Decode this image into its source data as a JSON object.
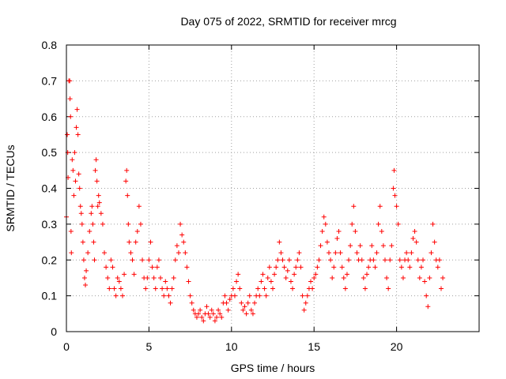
{
  "chart_data": {
    "type": "scatter",
    "title": "Day 075 of 2022, SRMTID for receiver mrcg",
    "xlabel": "GPS time / hours",
    "ylabel": "SRMTID / TECUs",
    "xlim": [
      0,
      25
    ],
    "ylim": [
      0,
      0.8
    ],
    "x_ticks": [
      0,
      5,
      10,
      15,
      20
    ],
    "y_ticks": [
      0,
      0.1,
      0.2,
      0.3,
      0.4,
      0.5,
      0.6,
      0.7,
      0.8
    ],
    "x_tick_labels": [
      "0",
      "5",
      "10",
      "15",
      "20"
    ],
    "y_tick_labels": [
      "0",
      "0.1",
      "0.2",
      "0.3",
      "0.4",
      "0.5",
      "0.6",
      "0.7",
      "0.8"
    ],
    "grid": true,
    "marker": "+",
    "color": "#ff0000",
    "series": [
      {
        "name": "SRMTID",
        "points": [
          [
            0.0,
            0.32
          ],
          [
            0.05,
            0.55
          ],
          [
            0.08,
            0.5
          ],
          [
            0.1,
            0.43
          ],
          [
            0.15,
            0.7
          ],
          [
            0.2,
            0.7
          ],
          [
            0.22,
            0.65
          ],
          [
            0.25,
            0.6
          ],
          [
            0.28,
            0.28
          ],
          [
            0.3,
            0.22
          ],
          [
            0.35,
            0.48
          ],
          [
            0.4,
            0.45
          ],
          [
            0.45,
            0.38
          ],
          [
            0.5,
            0.5
          ],
          [
            0.55,
            0.42
          ],
          [
            0.6,
            0.57
          ],
          [
            0.65,
            0.62
          ],
          [
            0.7,
            0.55
          ],
          [
            0.75,
            0.44
          ],
          [
            0.8,
            0.4
          ],
          [
            0.85,
            0.35
          ],
          [
            0.9,
            0.33
          ],
          [
            0.95,
            0.3
          ],
          [
            1.0,
            0.25
          ],
          [
            1.05,
            0.2
          ],
          [
            1.1,
            0.15
          ],
          [
            1.15,
            0.13
          ],
          [
            1.2,
            0.17
          ],
          [
            1.3,
            0.22
          ],
          [
            1.4,
            0.28
          ],
          [
            1.5,
            0.33
          ],
          [
            1.55,
            0.35
          ],
          [
            1.6,
            0.3
          ],
          [
            1.65,
            0.25
          ],
          [
            1.7,
            0.2
          ],
          [
            1.75,
            0.45
          ],
          [
            1.8,
            0.48
          ],
          [
            1.85,
            0.42
          ],
          [
            1.9,
            0.35
          ],
          [
            1.95,
            0.38
          ],
          [
            2.0,
            0.36
          ],
          [
            2.1,
            0.33
          ],
          [
            2.2,
            0.3
          ],
          [
            2.3,
            0.22
          ],
          [
            2.4,
            0.18
          ],
          [
            2.5,
            0.15
          ],
          [
            2.6,
            0.12
          ],
          [
            2.7,
            0.2
          ],
          [
            2.8,
            0.18
          ],
          [
            2.9,
            0.12
          ],
          [
            3.0,
            0.1
          ],
          [
            3.1,
            0.15
          ],
          [
            3.2,
            0.14
          ],
          [
            3.3,
            0.12
          ],
          [
            3.4,
            0.1
          ],
          [
            3.5,
            0.16
          ],
          [
            3.6,
            0.42
          ],
          [
            3.65,
            0.45
          ],
          [
            3.7,
            0.38
          ],
          [
            3.75,
            0.3
          ],
          [
            3.8,
            0.25
          ],
          [
            3.9,
            0.22
          ],
          [
            4.0,
            0.2
          ],
          [
            4.1,
            0.16
          ],
          [
            4.2,
            0.25
          ],
          [
            4.3,
            0.28
          ],
          [
            4.4,
            0.35
          ],
          [
            4.5,
            0.3
          ],
          [
            4.6,
            0.2
          ],
          [
            4.7,
            0.15
          ],
          [
            4.8,
            0.12
          ],
          [
            4.9,
            0.15
          ],
          [
            5.0,
            0.2
          ],
          [
            5.1,
            0.25
          ],
          [
            5.2,
            0.18
          ],
          [
            5.3,
            0.15
          ],
          [
            5.4,
            0.12
          ],
          [
            5.5,
            0.18
          ],
          [
            5.6,
            0.2
          ],
          [
            5.7,
            0.15
          ],
          [
            5.8,
            0.12
          ],
          [
            5.9,
            0.1
          ],
          [
            6.0,
            0.14
          ],
          [
            6.1,
            0.12
          ],
          [
            6.2,
            0.1
          ],
          [
            6.3,
            0.08
          ],
          [
            6.4,
            0.12
          ],
          [
            6.5,
            0.15
          ],
          [
            6.6,
            0.2
          ],
          [
            6.7,
            0.24
          ],
          [
            6.8,
            0.22
          ],
          [
            6.9,
            0.3
          ],
          [
            7.0,
            0.27
          ],
          [
            7.1,
            0.25
          ],
          [
            7.2,
            0.22
          ],
          [
            7.3,
            0.18
          ],
          [
            7.4,
            0.14
          ],
          [
            7.5,
            0.1
          ],
          [
            7.6,
            0.08
          ],
          [
            7.7,
            0.06
          ],
          [
            7.8,
            0.05
          ],
          [
            7.9,
            0.04
          ],
          [
            8.0,
            0.05
          ],
          [
            8.1,
            0.06
          ],
          [
            8.2,
            0.04
          ],
          [
            8.3,
            0.03
          ],
          [
            8.4,
            0.05
          ],
          [
            8.5,
            0.07
          ],
          [
            8.6,
            0.05
          ],
          [
            8.7,
            0.04
          ],
          [
            8.8,
            0.06
          ],
          [
            8.9,
            0.05
          ],
          [
            9.0,
            0.03
          ],
          [
            9.1,
            0.04
          ],
          [
            9.2,
            0.06
          ],
          [
            9.3,
            0.05
          ],
          [
            9.4,
            0.04
          ],
          [
            9.5,
            0.08
          ],
          [
            9.6,
            0.1
          ],
          [
            9.7,
            0.08
          ],
          [
            9.8,
            0.06
          ],
          [
            9.9,
            0.09
          ],
          [
            10.0,
            0.1
          ],
          [
            10.1,
            0.12
          ],
          [
            10.2,
            0.1
          ],
          [
            10.3,
            0.14
          ],
          [
            10.4,
            0.16
          ],
          [
            10.5,
            0.12
          ],
          [
            10.6,
            0.08
          ],
          [
            10.7,
            0.06
          ],
          [
            10.8,
            0.07
          ],
          [
            10.9,
            0.05
          ],
          [
            11.0,
            0.08
          ],
          [
            11.1,
            0.1
          ],
          [
            11.2,
            0.06
          ],
          [
            11.3,
            0.05
          ],
          [
            11.4,
            0.08
          ],
          [
            11.5,
            0.1
          ],
          [
            11.6,
            0.12
          ],
          [
            11.7,
            0.1
          ],
          [
            11.8,
            0.14
          ],
          [
            11.9,
            0.16
          ],
          [
            12.0,
            0.12
          ],
          [
            12.1,
            0.1
          ],
          [
            12.2,
            0.15
          ],
          [
            12.3,
            0.18
          ],
          [
            12.4,
            0.14
          ],
          [
            12.5,
            0.12
          ],
          [
            12.6,
            0.16
          ],
          [
            12.7,
            0.18
          ],
          [
            12.8,
            0.2
          ],
          [
            12.9,
            0.25
          ],
          [
            13.0,
            0.22
          ],
          [
            13.1,
            0.2
          ],
          [
            13.2,
            0.18
          ],
          [
            13.3,
            0.15
          ],
          [
            13.4,
            0.17
          ],
          [
            13.5,
            0.2
          ],
          [
            13.6,
            0.14
          ],
          [
            13.7,
            0.12
          ],
          [
            13.8,
            0.16
          ],
          [
            13.9,
            0.18
          ],
          [
            14.0,
            0.2
          ],
          [
            14.1,
            0.22
          ],
          [
            14.2,
            0.18
          ],
          [
            14.3,
            0.1
          ],
          [
            14.4,
            0.06
          ],
          [
            14.5,
            0.08
          ],
          [
            14.6,
            0.1
          ],
          [
            14.7,
            0.12
          ],
          [
            14.8,
            0.14
          ],
          [
            14.9,
            0.12
          ],
          [
            15.0,
            0.15
          ],
          [
            15.1,
            0.16
          ],
          [
            15.2,
            0.18
          ],
          [
            15.3,
            0.2
          ],
          [
            15.4,
            0.24
          ],
          [
            15.5,
            0.28
          ],
          [
            15.6,
            0.32
          ],
          [
            15.7,
            0.3
          ],
          [
            15.8,
            0.25
          ],
          [
            15.9,
            0.22
          ],
          [
            16.0,
            0.2
          ],
          [
            16.1,
            0.15
          ],
          [
            16.2,
            0.18
          ],
          [
            16.3,
            0.22
          ],
          [
            16.4,
            0.26
          ],
          [
            16.5,
            0.28
          ],
          [
            16.6,
            0.22
          ],
          [
            16.7,
            0.18
          ],
          [
            16.8,
            0.15
          ],
          [
            16.9,
            0.12
          ],
          [
            17.0,
            0.16
          ],
          [
            17.1,
            0.2
          ],
          [
            17.2,
            0.24
          ],
          [
            17.3,
            0.3
          ],
          [
            17.4,
            0.35
          ],
          [
            17.5,
            0.28
          ],
          [
            17.6,
            0.22
          ],
          [
            17.7,
            0.2
          ],
          [
            17.8,
            0.24
          ],
          [
            17.9,
            0.2
          ],
          [
            18.0,
            0.15
          ],
          [
            18.1,
            0.12
          ],
          [
            18.2,
            0.16
          ],
          [
            18.3,
            0.18
          ],
          [
            18.4,
            0.2
          ],
          [
            18.5,
            0.24
          ],
          [
            18.6,
            0.2
          ],
          [
            18.7,
            0.18
          ],
          [
            18.8,
            0.22
          ],
          [
            18.9,
            0.3
          ],
          [
            19.0,
            0.35
          ],
          [
            19.1,
            0.28
          ],
          [
            19.2,
            0.24
          ],
          [
            19.3,
            0.2
          ],
          [
            19.4,
            0.15
          ],
          [
            19.5,
            0.12
          ],
          [
            19.6,
            0.2
          ],
          [
            19.7,
            0.24
          ],
          [
            19.8,
            0.4
          ],
          [
            19.85,
            0.45
          ],
          [
            19.9,
            0.38
          ],
          [
            20.0,
            0.35
          ],
          [
            20.1,
            0.3
          ],
          [
            20.2,
            0.2
          ],
          [
            20.3,
            0.18
          ],
          [
            20.4,
            0.15
          ],
          [
            20.5,
            0.2
          ],
          [
            20.6,
            0.22
          ],
          [
            20.7,
            0.2
          ],
          [
            20.8,
            0.18
          ],
          [
            20.9,
            0.22
          ],
          [
            21.0,
            0.26
          ],
          [
            21.1,
            0.28
          ],
          [
            21.2,
            0.25
          ],
          [
            21.3,
            0.2
          ],
          [
            21.4,
            0.15
          ],
          [
            21.5,
            0.18
          ],
          [
            21.6,
            0.2
          ],
          [
            21.7,
            0.14
          ],
          [
            21.8,
            0.1
          ],
          [
            21.9,
            0.07
          ],
          [
            22.0,
            0.15
          ],
          [
            22.1,
            0.22
          ],
          [
            22.2,
            0.3
          ],
          [
            22.3,
            0.25
          ],
          [
            22.4,
            0.2
          ],
          [
            22.5,
            0.18
          ],
          [
            22.6,
            0.2
          ],
          [
            22.7,
            0.12
          ],
          [
            22.8,
            0.15
          ]
        ]
      }
    ]
  }
}
